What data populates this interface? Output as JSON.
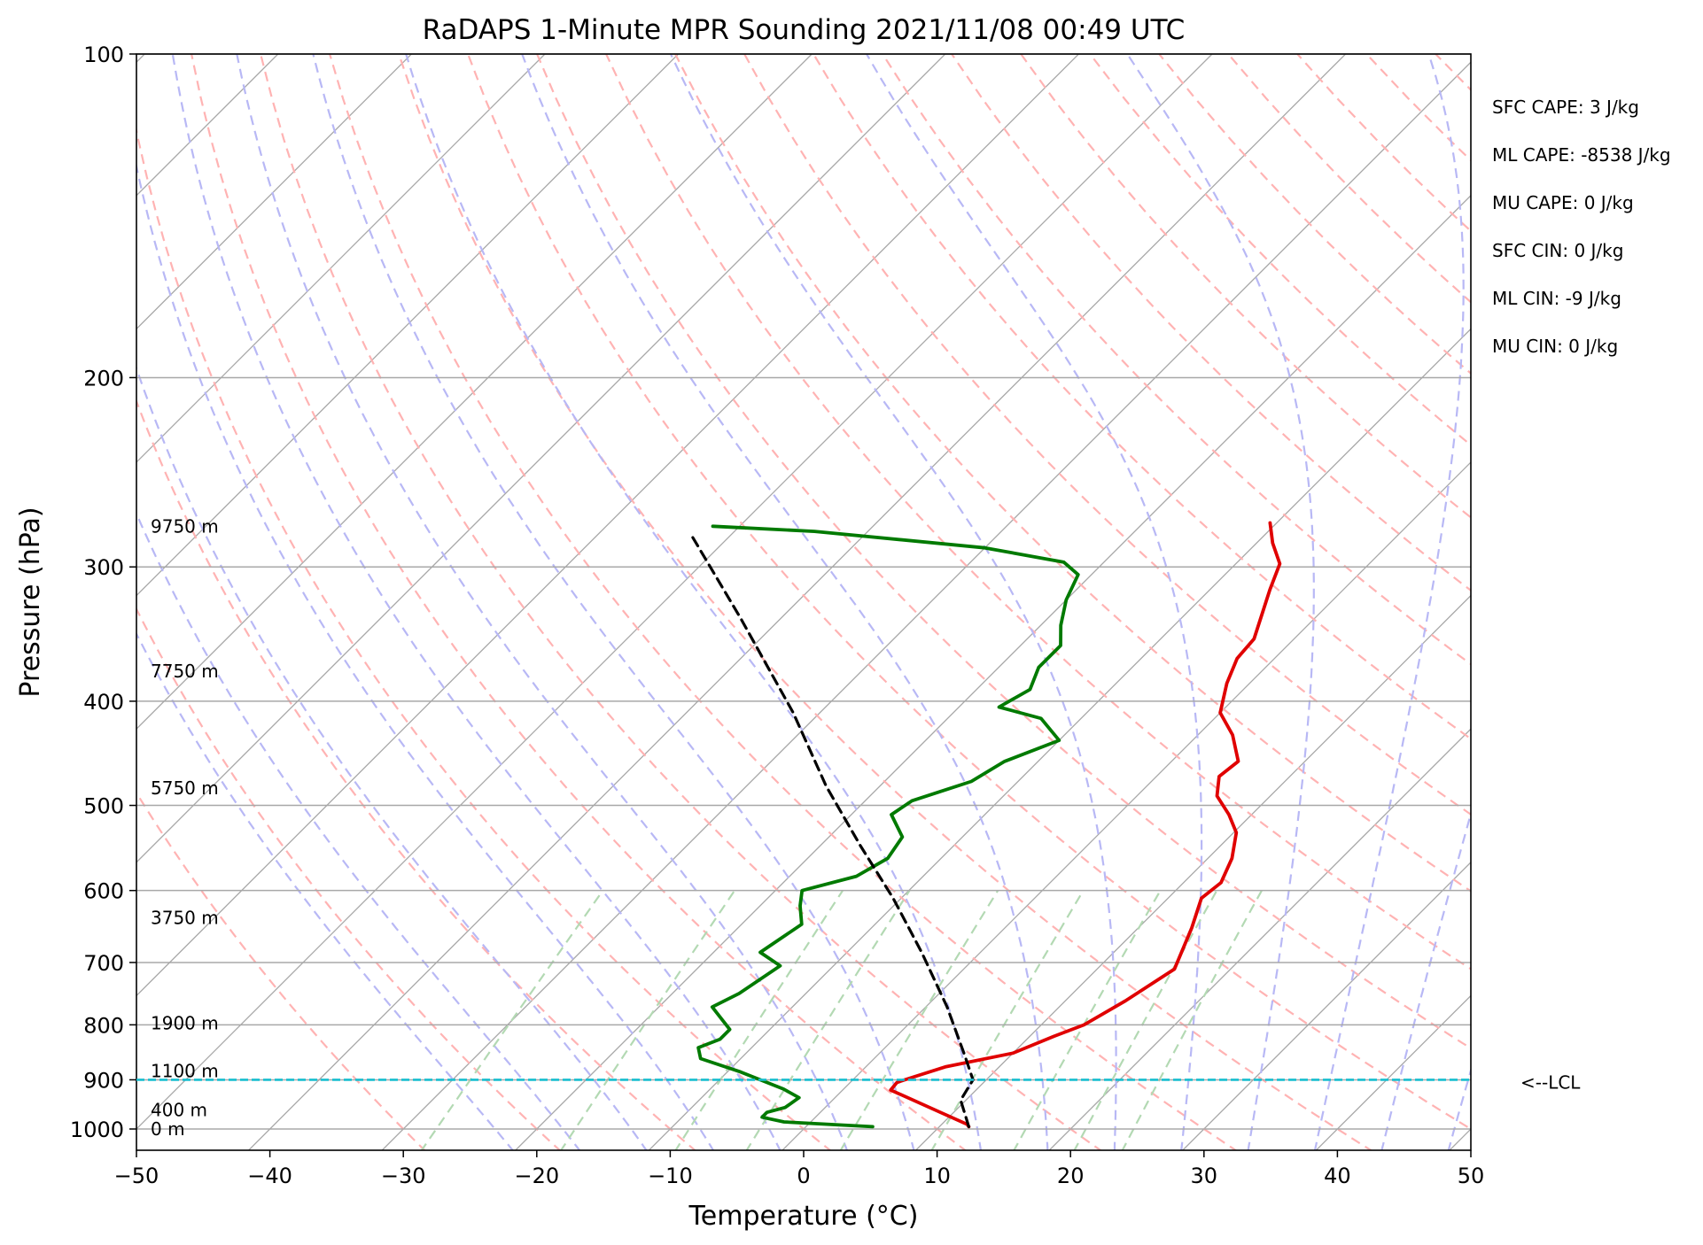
{
  "chart_data": {
    "type": "line",
    "title": "RaDAPS 1-Minute MPR Sounding 2021/11/08 00:49 UTC",
    "xlabel": "Temperature (°C)",
    "ylabel": "Pressure (hPa)",
    "xlim": [
      -50,
      50
    ],
    "ylim": [
      1050,
      100
    ],
    "y_scale": "log",
    "skew": "skew-T log-P",
    "grid": true,
    "x_ticks": [
      -50,
      -40,
      -30,
      -20,
      -10,
      0,
      10,
      20,
      30,
      40,
      50
    ],
    "x_tick_labels": [
      "−50",
      "−40",
      "−30",
      "−20",
      "−10",
      "0",
      "10",
      "20",
      "30",
      "40",
      "50"
    ],
    "y_ticks": [
      100,
      200,
      300,
      400,
      500,
      600,
      700,
      800,
      900,
      1000
    ],
    "y_tick_labels": [
      "100",
      "200",
      "300",
      "400",
      "500",
      "600",
      "700",
      "800",
      "900",
      "1000"
    ],
    "series": [
      {
        "color": "#e00000",
        "style": "solid",
        "points": [
          [
            12.2,
            995
          ],
          [
            11.9,
            990
          ],
          [
            9.0,
            965
          ],
          [
            3.6,
            920
          ],
          [
            3.5,
            905
          ],
          [
            4.3,
            895
          ],
          [
            6.0,
            875
          ],
          [
            10.0,
            850
          ],
          [
            11.8,
            820
          ],
          [
            13.2,
            800
          ],
          [
            14.5,
            760
          ],
          [
            15.8,
            710
          ],
          [
            14.0,
            650
          ],
          [
            12.5,
            610
          ],
          [
            12.8,
            590
          ],
          [
            11.8,
            560
          ],
          [
            10.2,
            530
          ],
          [
            8.3,
            510
          ],
          [
            6.0,
            490
          ],
          [
            4.7,
            470
          ],
          [
            5.0,
            455
          ],
          [
            2.6,
            430
          ],
          [
            0.0,
            410
          ],
          [
            -1.7,
            385
          ],
          [
            -2.8,
            365
          ],
          [
            -3.0,
            350
          ],
          [
            -4.4,
            330
          ],
          [
            -5.5,
            315
          ],
          [
            -6.7,
            298
          ],
          [
            -8.8,
            285
          ],
          [
            -10.5,
            273
          ]
        ]
      },
      {
        "color": "#007a00",
        "style": "solid",
        "points": [
          [
            5.0,
            995
          ],
          [
            -2.0,
            985
          ],
          [
            -4.0,
            975
          ],
          [
            -4.0,
            965
          ],
          [
            -3.0,
            955
          ],
          [
            -2.7,
            935
          ],
          [
            -4.5,
            918
          ],
          [
            -9.0,
            885
          ],
          [
            -13.0,
            860
          ],
          [
            -14.0,
            840
          ],
          [
            -13.0,
            825
          ],
          [
            -13.0,
            808
          ],
          [
            -16.0,
            770
          ],
          [
            -15.0,
            748
          ],
          [
            -14.0,
            705
          ],
          [
            -16.5,
            685
          ],
          [
            -15.5,
            645
          ],
          [
            -17.0,
            620
          ],
          [
            -18.0,
            600
          ],
          [
            -15.0,
            582
          ],
          [
            -14.0,
            560
          ],
          [
            -14.5,
            535
          ],
          [
            -17.0,
            510
          ],
          [
            -16.5,
            495
          ],
          [
            -13.5,
            475
          ],
          [
            -12.5,
            455
          ],
          [
            -10.0,
            435
          ],
          [
            -13.0,
            415
          ],
          [
            -17.0,
            405
          ],
          [
            -16.0,
            390
          ],
          [
            -17.0,
            372
          ],
          [
            -17.0,
            355
          ],
          [
            -18.5,
            340
          ],
          [
            -20.0,
            322
          ],
          [
            -21.0,
            305
          ],
          [
            -23.0,
            297
          ],
          [
            -30.0,
            288
          ],
          [
            -44.0,
            278
          ],
          [
            -52.0,
            275
          ]
        ]
      },
      {
        "color": "#000000",
        "style": "dashed",
        "points": [
          [
            12.2,
            995
          ],
          [
            9.6,
            940
          ],
          [
            9.0,
            900
          ],
          [
            6.6,
            855
          ],
          [
            1.6,
            770
          ],
          [
            -4.4,
            685
          ],
          [
            -10.6,
            610
          ],
          [
            -17.0,
            545
          ],
          [
            -24.0,
            480
          ],
          [
            -32.0,
            410
          ],
          [
            -43.0,
            335
          ],
          [
            -53.0,
            280
          ]
        ]
      }
    ],
    "lcl": {
      "pressure": 900,
      "label": "<--LCL",
      "color": "#17becf"
    },
    "height_labels": [
      {
        "text": "9750 m",
        "pressure": 275
      },
      {
        "text": "7750 m",
        "pressure": 375
      },
      {
        "text": "5750 m",
        "pressure": 482
      },
      {
        "text": "3750 m",
        "pressure": 636
      },
      {
        "text": "1900 m",
        "pressure": 797
      },
      {
        "text": "1100 m",
        "pressure": 883
      },
      {
        "text": "400 m",
        "pressure": 960
      },
      {
        "text": "0 m",
        "pressure": 1000
      }
    ],
    "stats": [
      "SFC CAPE: 3 J/kg",
      "ML CAPE: -8538 J/kg",
      "MU CAPE: 0 J/kg",
      "SFC CIN: 0 J/kg",
      "ML CIN: -9 J/kg",
      "MU CIN: 0 J/kg"
    ],
    "reference_lines": {
      "isotherms": "gray solid",
      "dry_adiabats": "red dashed",
      "moist_adiabats": "blue dashed",
      "mixing_ratio": "green dashed"
    }
  },
  "colors": {
    "temperature": "#e00000",
    "dewpoint": "#007a00",
    "parcel": "#000000",
    "lcl": "#17becf",
    "grid": "#a8a8a8",
    "dry_adiabat": "#ffb3b3",
    "moist_adiabat": "#b8b8f5",
    "mixing_ratio": "#b3d9b3"
  }
}
